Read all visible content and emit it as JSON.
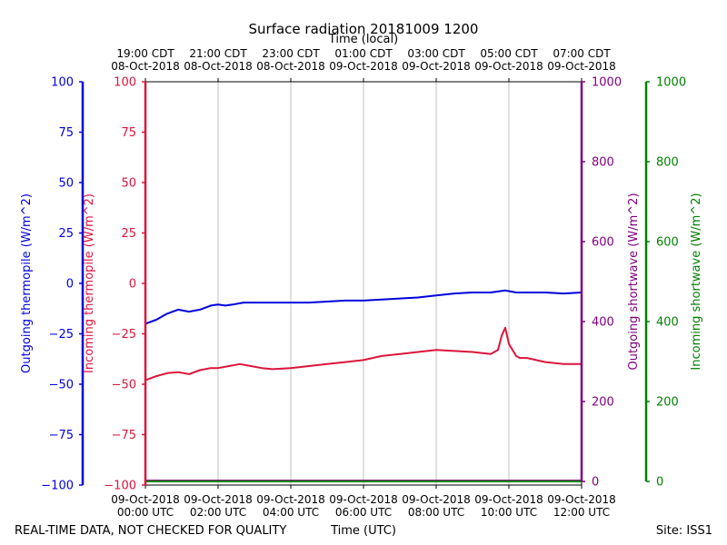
{
  "chart_data": {
    "type": "line",
    "title": "Surface radiation 20181009 1200",
    "top_axis_label": "Time (local)",
    "bottom_axis_label": "Time (UTC)",
    "footer_left": "REAL-TIME DATA, NOT CHECKED FOR QUALITY",
    "footer_right": "Site: ISS1",
    "xlim": [
      0,
      12
    ],
    "x_ticks": [
      {
        "value": 0,
        "utc_date": "09-Oct-2018",
        "utc_time": "00:00 UTC",
        "local_time": "19:00 CDT",
        "local_date": "08-Oct-2018"
      },
      {
        "value": 2,
        "utc_date": "09-Oct-2018",
        "utc_time": "02:00 UTC",
        "local_time": "21:00 CDT",
        "local_date": "08-Oct-2018"
      },
      {
        "value": 4,
        "utc_date": "09-Oct-2018",
        "utc_time": "04:00 UTC",
        "local_time": "23:00 CDT",
        "local_date": "08-Oct-2018"
      },
      {
        "value": 6,
        "utc_date": "09-Oct-2018",
        "utc_time": "06:00 UTC",
        "local_time": "01:00 CDT",
        "local_date": "09-Oct-2018"
      },
      {
        "value": 8,
        "utc_date": "09-Oct-2018",
        "utc_time": "08:00 UTC",
        "local_time": "03:00 CDT",
        "local_date": "09-Oct-2018"
      },
      {
        "value": 10,
        "utc_date": "09-Oct-2018",
        "utc_time": "10:00 UTC",
        "local_time": "05:00 CDT",
        "local_date": "09-Oct-2018"
      },
      {
        "value": 12,
        "utc_date": "09-Oct-2018",
        "utc_time": "12:00 UTC",
        "local_time": "07:00 CDT",
        "local_date": "09-Oct-2018"
      }
    ],
    "y_axes": [
      {
        "id": "outgoing_thermopile",
        "label": "Outgoing thermopile (W/m^2)",
        "color": "#0000dd",
        "ylim": [
          -100,
          100
        ],
        "ticks": [
          -100,
          -75,
          -50,
          -25,
          0,
          25,
          50,
          75,
          100
        ]
      },
      {
        "id": "incoming_thermopile",
        "label": "Incoming thermopile (W/m^2)",
        "color": "#dc143c",
        "ylim": [
          -100,
          100
        ],
        "ticks": [
          -100,
          -75,
          -50,
          -25,
          0,
          25,
          50,
          75,
          100
        ]
      },
      {
        "id": "outgoing_shortwave",
        "label": "Outgoing shortwave (W/m^2)",
        "color": "#800080",
        "ylim": [
          0,
          1000
        ],
        "ticks": [
          0,
          200,
          400,
          600,
          800,
          1000
        ]
      },
      {
        "id": "incoming_shortwave",
        "label": "Incoming shortwave (W/m^2)",
        "color": "#008000",
        "ylim": [
          0,
          1000
        ],
        "ticks": [
          0,
          200,
          400,
          600,
          800,
          1000
        ]
      }
    ],
    "series": [
      {
        "name": "Outgoing thermopile",
        "axis": "outgoing_thermopile",
        "color": "#0000dd",
        "x": [
          0,
          0.3,
          0.6,
          0.9,
          1.2,
          1.5,
          1.8,
          2.0,
          2.2,
          2.4,
          2.7,
          3.0,
          3.5,
          4.0,
          4.5,
          5.0,
          5.5,
          6.0,
          6.5,
          7.0,
          7.5,
          8.0,
          8.5,
          9.0,
          9.5,
          9.9,
          10.2,
          10.5,
          11.0,
          11.5,
          12.0
        ],
        "values": [
          -20,
          -18,
          -15,
          -13,
          -14,
          -13,
          -11,
          -10.5,
          -11,
          -10.5,
          -9.5,
          -9.5,
          -9.5,
          -9.5,
          -9.5,
          -9,
          -8.5,
          -8.5,
          -8,
          -7.5,
          -7,
          -6,
          -5,
          -4.5,
          -4.5,
          -3.5,
          -4.5,
          -4.5,
          -4.5,
          -5,
          -4.5
        ]
      },
      {
        "name": "Incoming thermopile",
        "axis": "incoming_thermopile",
        "color": "#dc143c",
        "x": [
          0,
          0.3,
          0.6,
          0.9,
          1.2,
          1.5,
          1.8,
          2.0,
          2.3,
          2.6,
          2.9,
          3.2,
          3.5,
          4.0,
          4.5,
          5.0,
          5.5,
          6.0,
          6.5,
          7.0,
          7.5,
          8.0,
          8.5,
          9.0,
          9.5,
          9.7,
          9.8,
          9.9,
          10.0,
          10.1,
          10.2,
          10.3,
          10.5,
          11.0,
          11.5,
          12.0
        ],
        "values": [
          -48,
          -46,
          -44.5,
          -44,
          -45,
          -43,
          -42,
          -42,
          -41,
          -40,
          -41,
          -42,
          -42.5,
          -42,
          -41,
          -40,
          -39,
          -38,
          -36,
          -35,
          -34,
          -33,
          -33.5,
          -34,
          -35,
          -33,
          -26,
          -22,
          -30,
          -33,
          -36,
          -37,
          -37,
          -39,
          -40,
          -40
        ]
      },
      {
        "name": "Outgoing shortwave",
        "axis": "outgoing_shortwave",
        "color": "#800080",
        "x": [
          0,
          12
        ],
        "values": [
          2,
          2
        ]
      },
      {
        "name": "Incoming shortwave",
        "axis": "incoming_shortwave",
        "color": "#008000",
        "x": [
          0,
          12
        ],
        "values": [
          0,
          0
        ]
      }
    ]
  }
}
